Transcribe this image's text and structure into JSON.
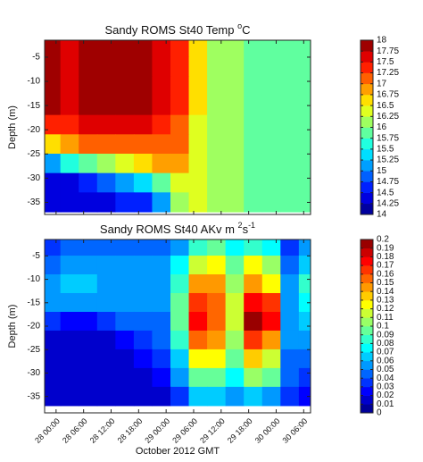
{
  "chart_data": [
    {
      "type": "contourf",
      "title": [
        "Sandy ROMS St40 Temp  ",
        "o",
        "C"
      ],
      "title_sup": [
        false,
        true,
        false
      ],
      "ylabel": "Depth (m)",
      "xlim": [
        -2.5,
        55.5
      ],
      "ylim": [
        -37.5,
        -1.5
      ],
      "xticks": [
        0,
        6,
        12,
        18,
        24,
        30,
        36,
        42,
        48,
        54
      ],
      "yticks": [
        -5,
        -10,
        -15,
        -20,
        -25,
        -30,
        -35
      ],
      "clim": [
        14,
        18
      ],
      "cticks": [
        14,
        14.25,
        14.5,
        14.75,
        15,
        15.25,
        15.5,
        15.75,
        16,
        16.25,
        16.5,
        16.75,
        17,
        17.25,
        17.5,
        17.75,
        18
      ],
      "colormap": "jet",
      "x": [
        -1,
        3,
        7,
        11,
        15,
        19,
        23,
        27,
        31,
        35,
        39,
        43,
        47,
        51,
        55
      ],
      "y": [
        -3,
        -7,
        -11,
        -15,
        -19,
        -23,
        -27,
        -31,
        -35
      ],
      "z": [
        [
          17.9,
          17.6,
          17.8,
          17.9,
          17.9,
          17.9,
          17.5,
          17.3,
          16.5,
          16.1,
          16.0,
          15.8,
          15.8,
          15.8,
          15.8
        ],
        [
          17.9,
          17.6,
          17.8,
          17.9,
          17.9,
          17.9,
          17.5,
          17.3,
          16.5,
          16.1,
          16.0,
          15.8,
          15.8,
          15.8,
          15.8
        ],
        [
          17.9,
          17.6,
          17.8,
          17.9,
          17.9,
          17.9,
          17.5,
          17.3,
          16.5,
          16.1,
          16.0,
          15.8,
          15.8,
          15.8,
          15.8
        ],
        [
          17.8,
          17.6,
          17.8,
          17.9,
          17.9,
          17.8,
          17.5,
          17.3,
          16.5,
          16.1,
          16.0,
          15.8,
          15.8,
          15.8,
          15.8
        ],
        [
          17.4,
          17.4,
          17.5,
          17.6,
          17.6,
          17.5,
          17.4,
          17.2,
          16.4,
          16.1,
          16.0,
          15.8,
          15.8,
          15.8,
          15.8
        ],
        [
          16.6,
          16.8,
          17.0,
          17.1,
          17.2,
          17.2,
          17.2,
          17.0,
          16.4,
          16.1,
          16.0,
          15.8,
          15.8,
          15.8,
          15.8
        ],
        [
          15.2,
          15.5,
          15.9,
          16.2,
          16.4,
          16.6,
          16.8,
          16.8,
          16.3,
          16.1,
          16.0,
          15.8,
          15.8,
          15.8,
          15.8
        ],
        [
          14.4,
          14.4,
          14.6,
          14.9,
          15.1,
          15.4,
          15.8,
          16.3,
          16.3,
          16.1,
          16.0,
          15.8,
          15.8,
          15.8,
          15.8
        ],
        [
          14.3,
          14.3,
          14.3,
          14.4,
          14.5,
          14.6,
          15.0,
          16.0,
          16.3,
          16.1,
          16.0,
          15.8,
          15.8,
          15.8,
          15.8
        ]
      ]
    },
    {
      "type": "contourf",
      "title": [
        "Sandy ROMS St40 AKv m ",
        "2",
        "s",
        "-1"
      ],
      "title_sup": [
        false,
        true,
        false,
        true
      ],
      "ylabel": "Depth (m)",
      "xlabel": "October 2012 GMT",
      "xlim": [
        -2.5,
        55.5
      ],
      "ylim": [
        -38.5,
        -1.5
      ],
      "xticks": [
        {
          "value": 0,
          "label": "28 00:00"
        },
        {
          "value": 6,
          "label": "28 06:00"
        },
        {
          "value": 12,
          "label": "28 12:00"
        },
        {
          "value": 18,
          "label": "28 18:00"
        },
        {
          "value": 24,
          "label": "29 00:00"
        },
        {
          "value": 30,
          "label": "29 06:00"
        },
        {
          "value": 36,
          "label": "29 12:00"
        },
        {
          "value": 42,
          "label": "29 18:00"
        },
        {
          "value": 48,
          "label": "30 00:00"
        },
        {
          "value": 54,
          "label": "30 06:00"
        }
      ],
      "yticks": [
        -5,
        -10,
        -15,
        -20,
        -25,
        -30,
        -35
      ],
      "clim": [
        0,
        0.2
      ],
      "cticks": [
        0,
        0.01,
        0.02,
        0.03,
        0.04,
        0.05,
        0.06,
        0.07,
        0.08,
        0.09,
        0.1,
        0.11,
        0.12,
        0.13,
        0.14,
        0.15,
        0.16,
        0.17,
        0.18,
        0.19,
        0.2
      ],
      "colormap": "jet",
      "x": [
        -1,
        3,
        7,
        11,
        15,
        19,
        23,
        27,
        31,
        35,
        39,
        43,
        47,
        51,
        55
      ],
      "y": [
        -3,
        -7,
        -11,
        -15,
        -19,
        -23,
        -27,
        -31,
        -35
      ],
      "z": [
        [
          0.03,
          0.04,
          0.04,
          0.04,
          0.04,
          0.04,
          0.04,
          0.05,
          0.08,
          0.09,
          0.07,
          0.08,
          0.07,
          0.03,
          0.05
        ],
        [
          0.04,
          0.05,
          0.05,
          0.05,
          0.05,
          0.05,
          0.05,
          0.07,
          0.11,
          0.12,
          0.09,
          0.12,
          0.1,
          0.04,
          0.06
        ],
        [
          0.05,
          0.06,
          0.06,
          0.05,
          0.05,
          0.05,
          0.05,
          0.08,
          0.14,
          0.14,
          0.1,
          0.14,
          0.12,
          0.05,
          0.08
        ],
        [
          0.05,
          0.05,
          0.05,
          0.05,
          0.05,
          0.05,
          0.05,
          0.09,
          0.16,
          0.15,
          0.11,
          0.17,
          0.16,
          0.05,
          0.07
        ],
        [
          0.03,
          0.02,
          0.02,
          0.03,
          0.04,
          0.04,
          0.04,
          0.09,
          0.17,
          0.15,
          0.11,
          0.19,
          0.17,
          0.05,
          0.06
        ],
        [
          0.01,
          0.01,
          0.01,
          0.01,
          0.02,
          0.03,
          0.04,
          0.08,
          0.15,
          0.14,
          0.1,
          0.16,
          0.14,
          0.05,
          0.05
        ],
        [
          0.01,
          0.01,
          0.01,
          0.01,
          0.01,
          0.02,
          0.03,
          0.06,
          0.12,
          0.12,
          0.09,
          0.13,
          0.11,
          0.04,
          0.04
        ],
        [
          0.01,
          0.01,
          0.01,
          0.01,
          0.01,
          0.01,
          0.02,
          0.05,
          0.09,
          0.09,
          0.07,
          0.1,
          0.09,
          0.04,
          0.03
        ],
        [
          0.01,
          0.01,
          0.01,
          0.01,
          0.01,
          0.01,
          0.01,
          0.03,
          0.06,
          0.06,
          0.05,
          0.06,
          0.05,
          0.03,
          0.02
        ]
      ]
    }
  ]
}
